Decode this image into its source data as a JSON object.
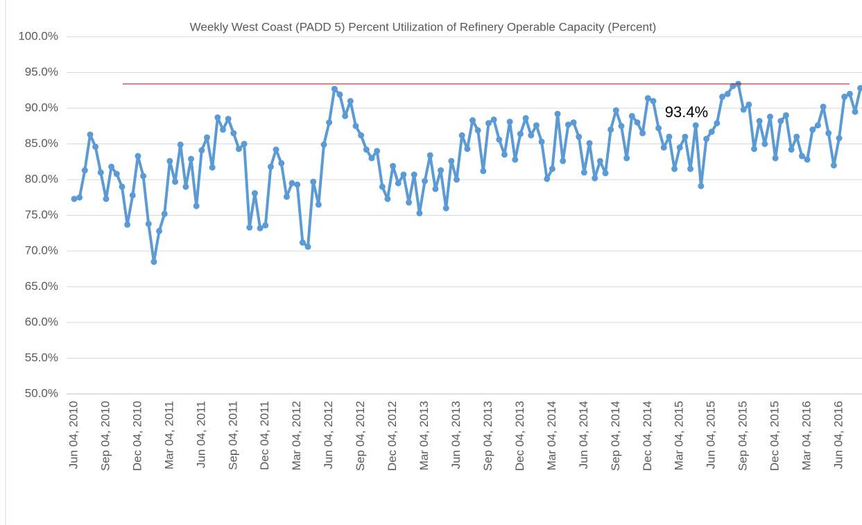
{
  "chart_data": {
    "type": "line",
    "title": "Weekly West Coast (PADD 5) Percent Utilization of Refinery Operable Capacity (Percent)",
    "categories": [
      "Jun 04, 2010",
      null,
      null,
      null,
      null,
      null,
      "Sep 04, 2010",
      null,
      null,
      null,
      null,
      null,
      "Dec 04, 2010",
      null,
      null,
      null,
      null,
      null,
      "Mar 04, 2011",
      null,
      null,
      null,
      null,
      null,
      "Jun 04, 2011",
      null,
      null,
      null,
      null,
      null,
      "Sep 04, 2011",
      null,
      null,
      null,
      null,
      null,
      "Dec 04, 2011",
      null,
      null,
      null,
      null,
      null,
      "Mar 04, 2012",
      null,
      null,
      null,
      null,
      null,
      "Jun 04, 2012",
      null,
      null,
      null,
      null,
      null,
      "Sep 04, 2012",
      null,
      null,
      null,
      null,
      null,
      "Dec 04, 2012",
      null,
      null,
      null,
      null,
      null,
      "Mar 04, 2013",
      null,
      null,
      null,
      null,
      null,
      "Jun 04, 2013",
      null,
      null,
      null,
      null,
      null,
      "Sep 04, 2013",
      null,
      null,
      null,
      null,
      null,
      "Dec 04, 2013",
      null,
      null,
      null,
      null,
      null,
      "Mar 04, 2014",
      null,
      null,
      null,
      null,
      null,
      "Jun 04, 2014",
      null,
      null,
      null,
      null,
      null,
      "Sep 04, 2014",
      null,
      null,
      null,
      null,
      null,
      "Dec 04, 2014",
      null,
      null,
      null,
      null,
      null,
      "Mar 04, 2015",
      null,
      null,
      null,
      null,
      null,
      "Jun 04, 2015",
      null,
      null,
      null,
      null,
      null,
      "Sep 04, 2015",
      null,
      null,
      null,
      null,
      null,
      "Dec 04, 2015",
      null,
      null,
      null,
      null,
      null,
      "Mar 04, 2016",
      null,
      null,
      null,
      null,
      null,
      "Jun 04, 2016",
      null,
      null,
      null,
      null
    ],
    "series": [
      {
        "color": "#5b9bd5",
        "values": [
          77.3,
          77.5,
          81.3,
          86.3,
          84.6,
          81.0,
          77.3,
          81.8,
          80.8,
          79.0,
          73.7,
          77.8,
          83.3,
          80.5,
          73.8,
          68.5,
          72.8,
          75.2,
          82.6,
          79.7,
          84.9,
          79.0,
          82.9,
          76.3,
          84.1,
          85.9,
          81.7,
          88.7,
          87.0,
          88.5,
          86.5,
          84.3,
          85.0,
          73.3,
          78.1,
          73.2,
          73.6,
          81.8,
          84.2,
          82.3,
          77.6,
          79.5,
          79.3,
          71.2,
          70.6,
          79.7,
          76.5,
          84.9,
          88.0,
          92.7,
          91.9,
          88.9,
          91.0,
          87.5,
          86.2,
          84.2,
          83.0,
          84.0,
          79.0,
          77.3,
          81.9,
          79.5,
          80.7,
          76.8,
          80.7,
          75.3,
          79.8,
          83.4,
          78.7,
          81.3,
          76.0,
          82.6,
          80.0,
          86.2,
          84.3,
          88.3,
          86.9,
          81.2,
          87.9,
          88.4,
          85.6,
          83.5,
          88.1,
          82.8,
          86.4,
          88.6,
          86.2,
          87.6,
          85.3,
          80.1,
          81.5,
          89.2,
          82.6,
          87.7,
          88.0,
          86.0,
          81.0,
          85.1,
          80.2,
          82.6,
          80.9,
          87.0,
          89.7,
          87.5,
          83.0,
          88.9,
          88.0,
          86.5,
          91.4,
          91.0,
          87.2,
          84.5,
          86.0,
          81.5,
          84.5,
          86.0,
          81.5,
          87.6,
          79.1,
          85.7,
          86.7,
          87.9,
          91.6,
          92.0,
          93.1,
          93.4,
          89.8,
          90.5,
          84.3,
          88.2,
          85.0,
          88.8,
          83.0,
          88.2,
          89.0,
          84.2,
          86.0,
          83.3,
          82.8,
          87.0,
          87.6,
          90.2,
          86.5,
          82.0,
          85.8,
          91.6,
          92.0,
          89.5,
          92.8
        ]
      }
    ],
    "ylim": [
      50,
      100
    ],
    "yticks": [
      {
        "value": 50,
        "label": "50.0%"
      },
      {
        "value": 55,
        "label": "55.0%"
      },
      {
        "value": 60,
        "label": "60.0%"
      },
      {
        "value": 65,
        "label": "65.0%"
      },
      {
        "value": 70,
        "label": "70.0%"
      },
      {
        "value": 75,
        "label": "75.0%"
      },
      {
        "value": 80,
        "label": "80.0%"
      },
      {
        "value": 85,
        "label": "85.0%"
      },
      {
        "value": 90,
        "label": "90.0%"
      },
      {
        "value": 95,
        "label": "95.0%"
      },
      {
        "value": 100,
        "label": "100.0%"
      }
    ],
    "grid": true,
    "reference_line": {
      "value": 93.4,
      "label": "93.4%",
      "color": "#c00000"
    }
  }
}
